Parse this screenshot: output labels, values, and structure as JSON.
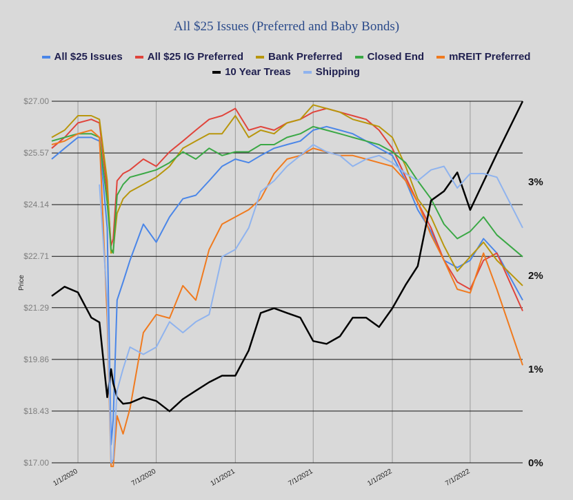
{
  "chart_data": {
    "type": "line",
    "title": "All $25 Issues (Preferred and Baby Bonds)",
    "ylabel": "Price",
    "ylim": [
      17.0,
      27.0
    ],
    "y_ticks": [
      "$27.00",
      "$25.57",
      "$24.14",
      "$22.71",
      "$21.29",
      "$19.86",
      "$18.43",
      "$17.00"
    ],
    "x_ticks": [
      "1/1/2020",
      "7/1/2020",
      "1/1/2021",
      "7/1/2021",
      "1/1/2022",
      "7/1/2022"
    ],
    "x_tick_dates": [
      "2020-01-01",
      "2020-07-01",
      "2021-01-01",
      "2021-07-01",
      "2022-01-01",
      "2022-07-01"
    ],
    "xlim": [
      "2019-11-01",
      "2022-10-31"
    ],
    "y2_ticks": [
      {
        "label": "3%",
        "value": 3
      },
      {
        "label": "2%",
        "value": 2
      },
      {
        "label": "1%",
        "value": 1
      },
      {
        "label": "0%",
        "value": 0
      }
    ],
    "y2lim": [
      0,
      3.86
    ],
    "grid": "horizontal and vertical",
    "legend_position": "top",
    "series": [
      {
        "name": "All $25 Issues",
        "color": "#4a86e8",
        "axis": "left",
        "x": [
          "2019-11-01",
          "2019-12-01",
          "2020-01-01",
          "2020-02-01",
          "2020-02-20",
          "2020-03-09",
          "2020-03-18",
          "2020-03-23",
          "2020-04-01",
          "2020-04-15",
          "2020-05-01",
          "2020-06-01",
          "2020-07-01",
          "2020-08-01",
          "2020-09-01",
          "2020-10-01",
          "2020-11-01",
          "2020-12-01",
          "2021-01-01",
          "2021-02-01",
          "2021-03-01",
          "2021-04-01",
          "2021-05-01",
          "2021-06-01",
          "2021-07-01",
          "2021-08-01",
          "2021-09-01",
          "2021-10-01",
          "2021-11-01",
          "2021-12-01",
          "2022-01-01",
          "2022-02-01",
          "2022-03-01",
          "2022-04-01",
          "2022-05-01",
          "2022-06-01",
          "2022-07-01",
          "2022-08-01",
          "2022-09-01",
          "2022-10-31"
        ],
        "y": [
          25.4,
          25.7,
          26.0,
          26.0,
          25.9,
          23.5,
          17.5,
          18.2,
          21.5,
          22.0,
          22.6,
          23.6,
          23.1,
          23.8,
          24.3,
          24.4,
          24.8,
          25.2,
          25.4,
          25.3,
          25.5,
          25.7,
          25.8,
          25.9,
          26.2,
          26.3,
          26.2,
          26.1,
          25.9,
          25.7,
          25.5,
          24.8,
          24.0,
          23.4,
          22.6,
          22.4,
          22.6,
          23.2,
          22.8,
          21.5
        ]
      },
      {
        "name": "All $25 IG Preferred",
        "color": "#e0443b",
        "axis": "left",
        "x": [
          "2019-11-01",
          "2019-12-01",
          "2020-01-01",
          "2020-02-01",
          "2020-02-20",
          "2020-03-09",
          "2020-03-18",
          "2020-03-23",
          "2020-04-01",
          "2020-04-15",
          "2020-05-01",
          "2020-06-01",
          "2020-07-01",
          "2020-08-01",
          "2020-09-01",
          "2020-10-01",
          "2020-11-01",
          "2020-12-01",
          "2021-01-01",
          "2021-02-01",
          "2021-03-01",
          "2021-04-01",
          "2021-05-01",
          "2021-06-01",
          "2021-07-01",
          "2021-08-01",
          "2021-09-01",
          "2021-10-01",
          "2021-11-01",
          "2021-12-01",
          "2022-01-01",
          "2022-02-01",
          "2022-03-01",
          "2022-04-01",
          "2022-05-01",
          "2022-06-01",
          "2022-07-01",
          "2022-08-01",
          "2022-09-01",
          "2022-10-31"
        ],
        "y": [
          25.7,
          26.0,
          26.4,
          26.5,
          26.4,
          24.5,
          23.0,
          23.2,
          24.8,
          25.0,
          25.1,
          25.4,
          25.2,
          25.6,
          25.9,
          26.2,
          26.5,
          26.6,
          26.8,
          26.2,
          26.3,
          26.2,
          26.4,
          26.5,
          26.7,
          26.8,
          26.7,
          26.6,
          26.5,
          26.2,
          25.7,
          24.9,
          24.2,
          23.5,
          22.6,
          22.0,
          21.8,
          22.6,
          22.8,
          21.2
        ]
      },
      {
        "name": "Bank Preferred",
        "color": "#b8960c",
        "axis": "left",
        "x": [
          "2019-11-01",
          "2019-12-01",
          "2020-01-01",
          "2020-02-01",
          "2020-02-20",
          "2020-03-09",
          "2020-03-18",
          "2020-03-23",
          "2020-04-01",
          "2020-04-15",
          "2020-05-01",
          "2020-06-01",
          "2020-07-01",
          "2020-08-01",
          "2020-09-01",
          "2020-10-01",
          "2020-11-01",
          "2020-12-01",
          "2021-01-01",
          "2021-02-01",
          "2021-03-01",
          "2021-04-01",
          "2021-05-01",
          "2021-06-01",
          "2021-07-01",
          "2021-08-01",
          "2021-09-01",
          "2021-10-01",
          "2021-11-01",
          "2021-12-01",
          "2022-01-01",
          "2022-02-01",
          "2022-03-01",
          "2022-04-01",
          "2022-05-01",
          "2022-06-01",
          "2022-07-01",
          "2022-08-01",
          "2022-09-01",
          "2022-10-31"
        ],
        "y": [
          26.0,
          26.2,
          26.6,
          26.6,
          26.5,
          24.8,
          22.8,
          22.9,
          23.9,
          24.3,
          24.5,
          24.7,
          24.9,
          25.2,
          25.7,
          25.9,
          26.1,
          26.1,
          26.6,
          26.0,
          26.2,
          26.1,
          26.4,
          26.5,
          26.9,
          26.8,
          26.7,
          26.5,
          26.4,
          26.3,
          26.0,
          25.2,
          24.3,
          23.8,
          23.0,
          22.3,
          22.7,
          23.1,
          22.6,
          21.9
        ]
      },
      {
        "name": "Closed End",
        "color": "#3aa845",
        "axis": "left",
        "x": [
          "2019-11-01",
          "2019-12-01",
          "2020-01-01",
          "2020-02-01",
          "2020-02-20",
          "2020-03-09",
          "2020-03-18",
          "2020-03-23",
          "2020-04-01",
          "2020-04-15",
          "2020-05-01",
          "2020-06-01",
          "2020-07-01",
          "2020-08-01",
          "2020-09-01",
          "2020-10-01",
          "2020-11-01",
          "2020-12-01",
          "2021-01-01",
          "2021-02-01",
          "2021-03-01",
          "2021-04-01",
          "2021-05-01",
          "2021-06-01",
          "2021-07-01",
          "2021-08-01",
          "2021-09-01",
          "2021-10-01",
          "2021-11-01",
          "2021-12-01",
          "2022-01-01",
          "2022-02-01",
          "2022-03-01",
          "2022-04-01",
          "2022-05-01",
          "2022-06-01",
          "2022-07-01",
          "2022-08-01",
          "2022-09-01",
          "2022-10-31"
        ],
        "y": [
          25.9,
          26.0,
          26.1,
          26.1,
          26.0,
          24.2,
          22.9,
          22.8,
          24.4,
          24.7,
          24.9,
          25.0,
          25.1,
          25.3,
          25.6,
          25.4,
          25.7,
          25.5,
          25.6,
          25.6,
          25.8,
          25.8,
          26.0,
          26.1,
          26.3,
          26.2,
          26.1,
          26.0,
          25.9,
          25.8,
          25.6,
          25.3,
          24.8,
          24.3,
          23.6,
          23.2,
          23.4,
          23.8,
          23.3,
          22.7
        ]
      },
      {
        "name": "mREIT Preferred",
        "color": "#f07a1e",
        "axis": "left",
        "x": [
          "2019-11-01",
          "2019-12-01",
          "2020-01-01",
          "2020-02-01",
          "2020-02-20",
          "2020-03-09",
          "2020-03-18",
          "2020-03-23",
          "2020-04-01",
          "2020-04-15",
          "2020-05-01",
          "2020-06-01",
          "2020-07-01",
          "2020-08-01",
          "2020-09-01",
          "2020-10-01",
          "2020-11-01",
          "2020-12-01",
          "2021-01-01",
          "2021-02-01",
          "2021-03-01",
          "2021-04-01",
          "2021-05-01",
          "2021-06-01",
          "2021-07-01",
          "2021-08-01",
          "2021-09-01",
          "2021-10-01",
          "2021-11-01",
          "2021-12-01",
          "2022-01-01",
          "2022-02-01",
          "2022-03-01",
          "2022-04-01",
          "2022-05-01",
          "2022-06-01",
          "2022-07-01",
          "2022-08-01",
          "2022-09-01",
          "2022-10-31"
        ],
        "y": [
          25.8,
          25.9,
          26.1,
          26.2,
          26.0,
          21.0,
          16.9,
          16.9,
          18.3,
          17.8,
          18.5,
          20.6,
          21.1,
          21.0,
          21.9,
          21.5,
          22.9,
          23.6,
          23.8,
          24.0,
          24.3,
          25.0,
          25.4,
          25.5,
          25.7,
          25.6,
          25.5,
          25.5,
          25.4,
          25.3,
          25.2,
          24.8,
          24.2,
          23.3,
          22.6,
          21.8,
          21.7,
          22.8,
          21.8,
          19.7
        ]
      },
      {
        "name": "10 Year Treas",
        "color": "#000000",
        "axis": "right",
        "x": [
          "2019-11-01",
          "2019-12-01",
          "2020-01-01",
          "2020-02-01",
          "2020-02-20",
          "2020-03-09",
          "2020-03-18",
          "2020-03-23",
          "2020-04-01",
          "2020-04-15",
          "2020-05-01",
          "2020-06-01",
          "2020-07-01",
          "2020-08-01",
          "2020-09-01",
          "2020-10-01",
          "2020-11-01",
          "2020-12-01",
          "2021-01-01",
          "2021-02-01",
          "2021-03-01",
          "2021-04-01",
          "2021-05-01",
          "2021-06-01",
          "2021-07-01",
          "2021-08-01",
          "2021-09-01",
          "2021-10-01",
          "2021-11-01",
          "2021-12-01",
          "2022-01-01",
          "2022-02-01",
          "2022-03-01",
          "2022-04-01",
          "2022-05-01",
          "2022-06-01",
          "2022-07-01",
          "2022-08-01",
          "2022-09-01",
          "2022-10-31"
        ],
        "y": [
          1.78,
          1.88,
          1.82,
          1.55,
          1.5,
          0.7,
          1.0,
          0.85,
          0.7,
          0.63,
          0.64,
          0.7,
          0.66,
          0.55,
          0.68,
          0.77,
          0.86,
          0.93,
          0.93,
          1.2,
          1.6,
          1.65,
          1.6,
          1.55,
          1.3,
          1.27,
          1.35,
          1.55,
          1.55,
          1.45,
          1.65,
          1.9,
          2.1,
          2.8,
          2.9,
          3.1,
          2.7,
          3.0,
          3.3,
          3.86
        ]
      },
      {
        "name": "Shipping",
        "color": "#8fb3ee",
        "axis": "left",
        "x": [
          "2019-11-01",
          "2019-12-01",
          "2020-01-01",
          "2020-02-01",
          "2020-02-20",
          "2020-03-09",
          "2020-03-18",
          "2020-03-23",
          "2020-04-01",
          "2020-04-15",
          "2020-05-01",
          "2020-06-01",
          "2020-07-01",
          "2020-08-01",
          "2020-09-01",
          "2020-10-01",
          "2020-11-01",
          "2020-12-01",
          "2021-01-01",
          "2021-02-01",
          "2021-03-01",
          "2021-04-01",
          "2021-05-01",
          "2021-06-01",
          "2021-07-01",
          "2021-08-01",
          "2021-09-01",
          "2021-10-01",
          "2021-11-01",
          "2021-12-01",
          "2022-01-01",
          "2022-02-01",
          "2022-03-01",
          "2022-04-01",
          "2022-05-01",
          "2022-06-01",
          "2022-07-01",
          "2022-08-01",
          "2022-09-01",
          "2022-10-31"
        ],
        "y": [
          null,
          null,
          null,
          null,
          24.7,
          21.5,
          17.0,
          17.1,
          19.0,
          19.6,
          20.2,
          20.0,
          20.2,
          20.9,
          20.6,
          20.9,
          21.1,
          22.7,
          22.9,
          23.5,
          24.5,
          24.8,
          25.2,
          25.5,
          25.8,
          25.6,
          25.5,
          25.2,
          25.4,
          25.5,
          25.3,
          25.0,
          24.8,
          25.1,
          25.2,
          24.6,
          25.0,
          25.0,
          24.9,
          23.5
        ]
      }
    ]
  }
}
